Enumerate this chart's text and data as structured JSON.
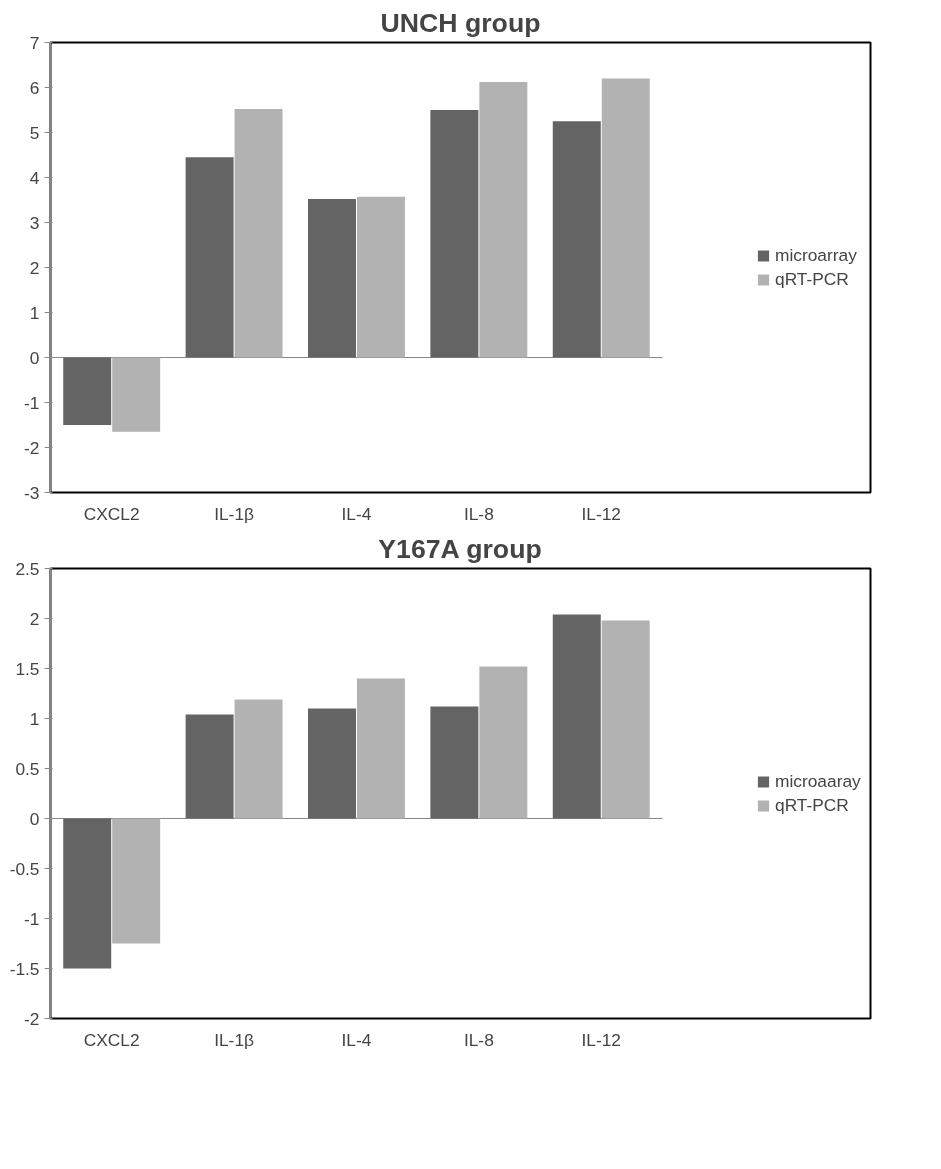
{
  "chart_data": [
    {
      "type": "bar",
      "title": "UNCH group",
      "categories": [
        "CXCL2",
        "IL-1β",
        "IL-4",
        "IL-8",
        "IL-12"
      ],
      "series": [
        {
          "name": "microarray",
          "color": "#646464",
          "values": [
            -1.5,
            4.45,
            3.52,
            5.5,
            5.25
          ]
        },
        {
          "name": "qRT-PCR",
          "color": "#b2b2b2",
          "values": [
            -1.65,
            5.52,
            3.57,
            6.12,
            6.2
          ]
        }
      ],
      "ylim": [
        -3,
        7
      ],
      "yticks": [
        -3,
        -2,
        -1,
        0,
        1,
        2,
        3,
        4,
        5,
        6,
        7
      ],
      "legend": "right"
    },
    {
      "type": "bar",
      "title": "Y167A group",
      "categories": [
        "CXCL2",
        "IL-1β",
        "IL-4",
        "IL-8",
        "IL-12"
      ],
      "series": [
        {
          "name": "microaaray",
          "color": "#646464",
          "values": [
            -1.5,
            1.04,
            1.1,
            1.12,
            2.04
          ]
        },
        {
          "name": "qRT-PCR",
          "color": "#b2b2b2",
          "values": [
            -1.25,
            1.19,
            1.4,
            1.52,
            1.98
          ]
        }
      ],
      "ylim": [
        -2,
        2.5
      ],
      "yticks": [
        -2,
        -1.5,
        -1,
        -0.5,
        0,
        0.5,
        1,
        1.5,
        2,
        2.5
      ],
      "legend": "right"
    }
  ]
}
